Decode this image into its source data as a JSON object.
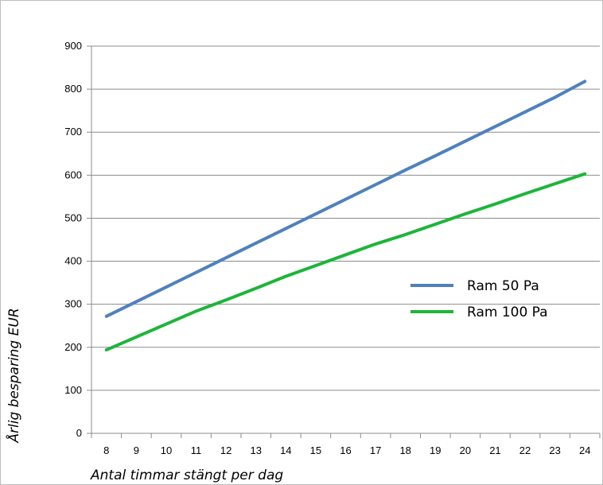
{
  "chart_data": {
    "type": "line",
    "xlabel": "Antal timmar stängt per dag",
    "ylabel": "Årlig besparing EUR",
    "x": [
      8,
      9,
      10,
      11,
      12,
      13,
      14,
      15,
      16,
      17,
      18,
      19,
      20,
      21,
      22,
      23,
      24
    ],
    "x_tick_labels": [
      "8",
      "9",
      "10",
      "11",
      "12",
      "13",
      "14",
      "15",
      "16",
      "17",
      "18",
      "19",
      "20",
      "21",
      "22",
      "23",
      "24"
    ],
    "ylim": [
      0,
      900
    ],
    "y_tick_labels": [
      "0",
      "100",
      "200",
      "300",
      "400",
      "500",
      "600",
      "700",
      "800",
      "900"
    ],
    "grid": "horizontal",
    "legend_position": "right",
    "series": [
      {
        "name": "Ram 50 Pa",
        "color": "#4f81bd",
        "values": [
          272,
          306,
          340,
          374,
          408,
          442,
          476,
          510,
          544,
          578,
          612,
          645,
          679,
          713,
          747,
          781,
          818
        ]
      },
      {
        "name": "Ram 100 Pa",
        "color": "#1db53a",
        "values": [
          194,
          224,
          254,
          284,
          310,
          337,
          365,
          390,
          415,
          440,
          462,
          486,
          510,
          533,
          557,
          580,
          603
        ]
      }
    ]
  }
}
